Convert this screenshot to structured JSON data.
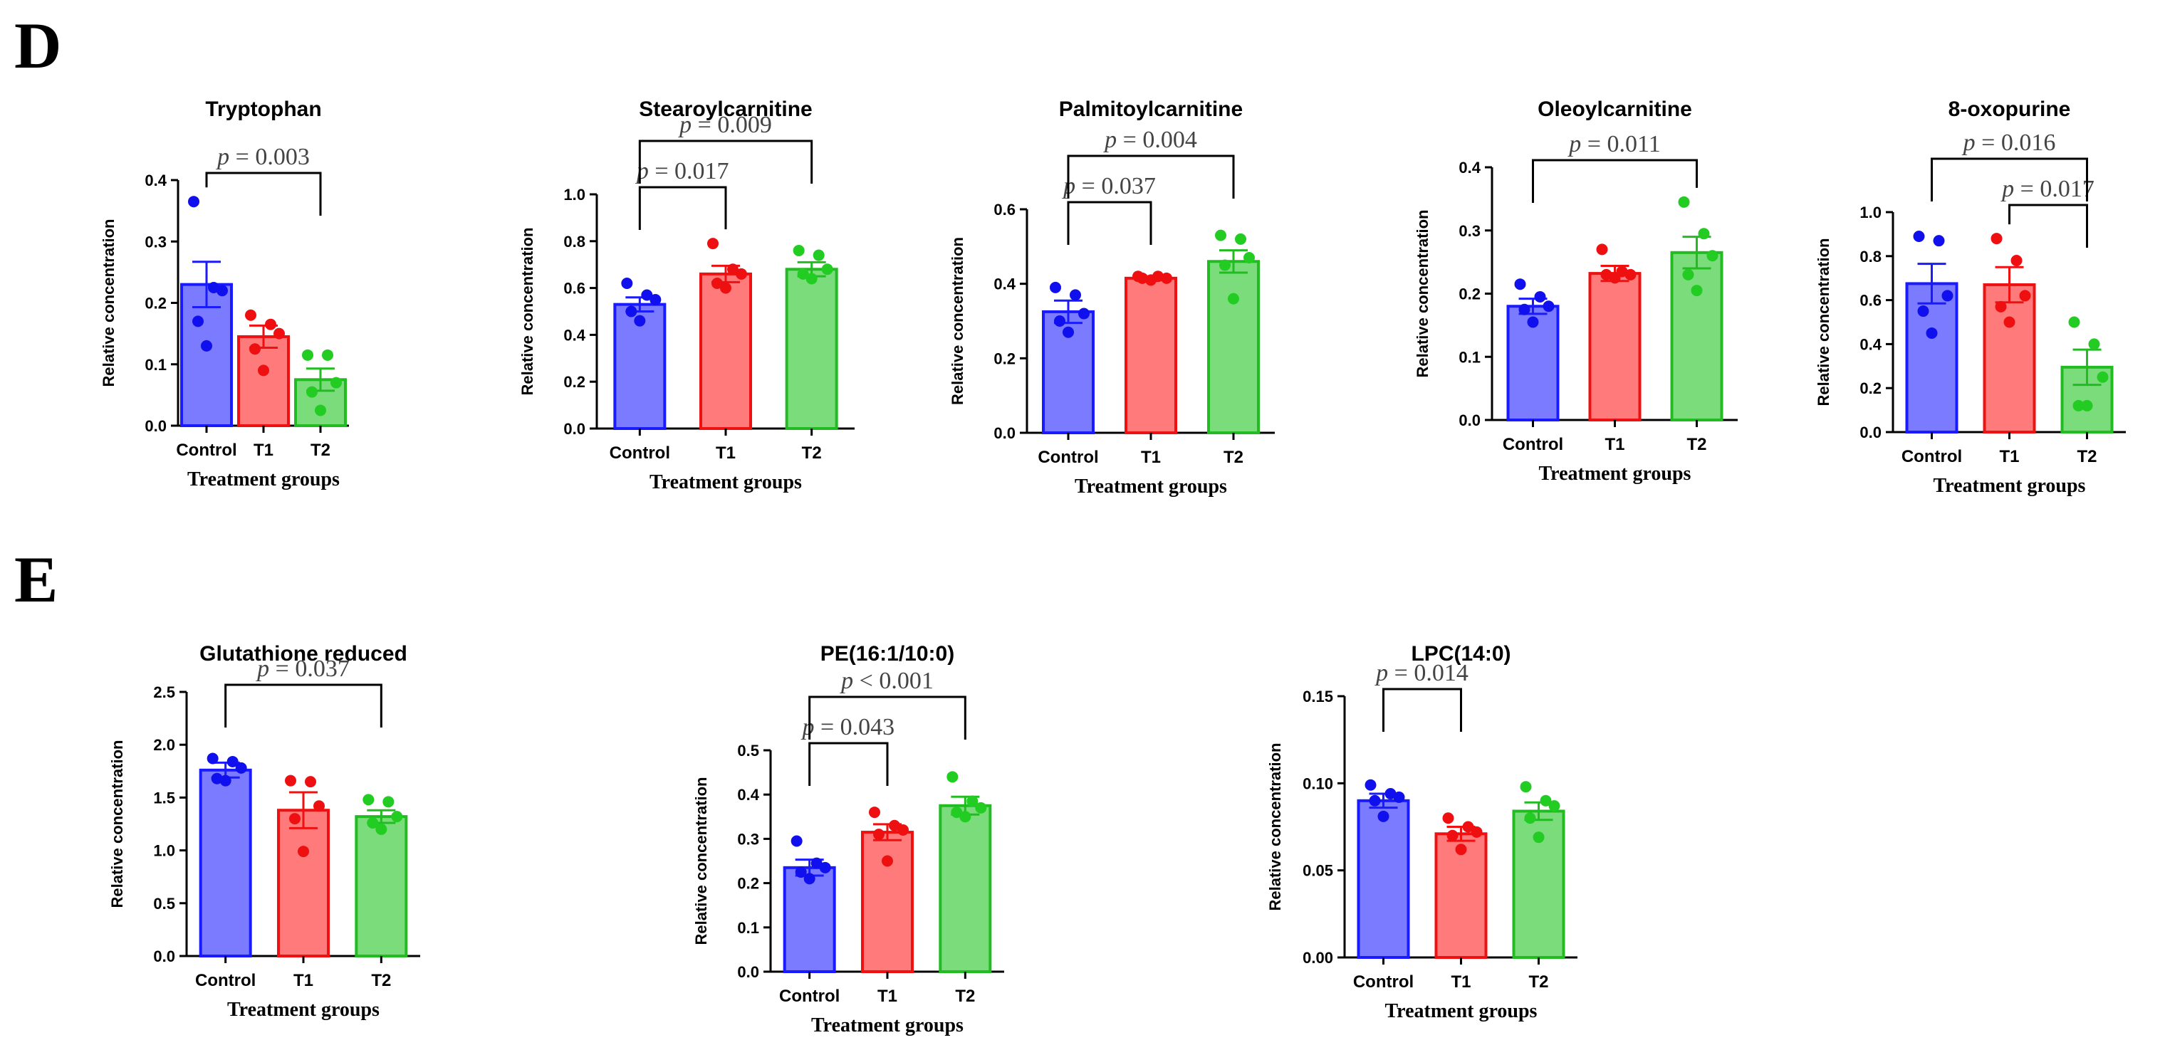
{
  "panels": [
    "D",
    "E"
  ],
  "colors": {
    "group_fill": [
      "#7b7bff",
      "#ff7b7b",
      "#7bdc7b"
    ],
    "group_edge": [
      "#1a1aff",
      "#ee1111",
      "#22bb22"
    ],
    "dot": [
      "#1010ee",
      "#ee1010",
      "#22cc22"
    ]
  },
  "chart_data": [
    {
      "type": "bar",
      "panel": "D",
      "title": "Tryptophan",
      "categories": [
        "Control",
        "T1",
        "T2"
      ],
      "values": [
        0.23,
        0.145,
        0.075
      ],
      "errors": [
        0.037,
        0.018,
        0.018
      ],
      "points": [
        [
          0.365,
          0.225,
          0.22,
          0.17,
          0.13
        ],
        [
          0.18,
          0.165,
          0.15,
          0.125,
          0.09
        ],
        [
          0.115,
          0.115,
          0.07,
          0.055,
          0.025
        ]
      ],
      "ylim": [
        0,
        0.4
      ],
      "yticks": [
        "0.0",
        "0.1",
        "0.2",
        "0.3",
        "0.4"
      ],
      "xlabel": "Treatment groups",
      "ylabel": "Relative concentration",
      "comparisons": [
        {
          "from": 0,
          "to": 2,
          "label": "p = 0.003"
        }
      ]
    },
    {
      "type": "bar",
      "panel": "D",
      "title": "Stearoylcarnitine",
      "categories": [
        "Control",
        "T1",
        "T2"
      ],
      "values": [
        0.53,
        0.66,
        0.68
      ],
      "errors": [
        0.03,
        0.035,
        0.03
      ],
      "points": [
        [
          0.62,
          0.57,
          0.55,
          0.5,
          0.46
        ],
        [
          0.79,
          0.68,
          0.66,
          0.62,
          0.6
        ],
        [
          0.76,
          0.74,
          0.68,
          0.66,
          0.64
        ]
      ],
      "ylim": [
        0,
        1.0
      ],
      "yticks": [
        "0.0",
        "0.2",
        "0.4",
        "0.6",
        "0.8",
        "1.0"
      ],
      "xlabel": "Treatment groups",
      "ylabel": "Relative concentration",
      "comparisons": [
        {
          "from": 0,
          "to": 1,
          "label": "p = 0.017"
        },
        {
          "from": 0,
          "to": 2,
          "label": "p = 0.009"
        }
      ]
    },
    {
      "type": "bar",
      "panel": "D",
      "title": "Palmitoylcarnitine",
      "categories": [
        "Control",
        "T1",
        "T2"
      ],
      "values": [
        0.325,
        0.415,
        0.46
      ],
      "errors": [
        0.03,
        0.005,
        0.03
      ],
      "points": [
        [
          0.39,
          0.37,
          0.32,
          0.3,
          0.27
        ],
        [
          0.42,
          0.42,
          0.415,
          0.415,
          0.41
        ],
        [
          0.53,
          0.52,
          0.47,
          0.45,
          0.36
        ]
      ],
      "ylim": [
        0,
        0.6
      ],
      "yticks": [
        "0.0",
        "0.2",
        "0.4",
        "0.6"
      ],
      "xlabel": "Treatment groups",
      "ylabel": "Relative concentration",
      "comparisons": [
        {
          "from": 0,
          "to": 1,
          "label": "p = 0.037"
        },
        {
          "from": 0,
          "to": 2,
          "label": "p = 0.004"
        }
      ]
    },
    {
      "type": "bar",
      "panel": "D",
      "title": "Oleoylcarnitine",
      "categories": [
        "Control",
        "T1",
        "T2"
      ],
      "values": [
        0.18,
        0.232,
        0.265
      ],
      "errors": [
        0.012,
        0.012,
        0.025
      ],
      "points": [
        [
          0.215,
          0.195,
          0.18,
          0.175,
          0.155
        ],
        [
          0.27,
          0.235,
          0.23,
          0.23,
          0.225
        ],
        [
          0.345,
          0.295,
          0.26,
          0.23,
          0.205
        ]
      ],
      "ylim": [
        0,
        0.4
      ],
      "yticks": [
        "0.0",
        "0.1",
        "0.2",
        "0.3",
        "0.4"
      ],
      "xlabel": "Treatment groups",
      "ylabel": "Relative concentration",
      "comparisons": [
        {
          "from": 0,
          "to": 2,
          "label": "p = 0.011"
        }
      ]
    },
    {
      "type": "bar",
      "panel": "D",
      "title": "8-oxopurine",
      "categories": [
        "Control",
        "T1",
        "T2"
      ],
      "values": [
        0.675,
        0.67,
        0.295
      ],
      "errors": [
        0.09,
        0.08,
        0.08
      ],
      "points": [
        [
          0.89,
          0.87,
          0.62,
          0.55,
          0.45
        ],
        [
          0.88,
          0.78,
          0.62,
          0.57,
          0.5
        ],
        [
          0.5,
          0.4,
          0.25,
          0.12,
          0.12
        ]
      ],
      "ylim": [
        0,
        1.0
      ],
      "yticks": [
        "0.0",
        "0.2",
        "0.4",
        "0.6",
        "0.8",
        "1.0"
      ],
      "xlabel": "Treatment groups",
      "ylabel": "Relative concentration",
      "comparisons": [
        {
          "from": 0,
          "to": 2,
          "label": "p = 0.016"
        },
        {
          "from": 1,
          "to": 2,
          "label": "p = 0.017"
        }
      ]
    },
    {
      "type": "bar",
      "panel": "E",
      "title": "Glutathione reduced",
      "categories": [
        "Control",
        "T1",
        "T2"
      ],
      "values": [
        1.76,
        1.38,
        1.32
      ],
      "errors": [
        0.07,
        0.17,
        0.06
      ],
      "points": [
        [
          1.87,
          1.84,
          1.78,
          1.68,
          1.66
        ],
        [
          1.66,
          1.65,
          1.42,
          1.3,
          0.99
        ],
        [
          1.48,
          1.46,
          1.32,
          1.26,
          1.2
        ]
      ],
      "ylim": [
        0,
        2.5
      ],
      "yticks": [
        "0.0",
        "0.5",
        "1.0",
        "1.5",
        "2.0",
        "2.5"
      ],
      "xlabel": "Treatment groups",
      "ylabel": "Relative concentration",
      "comparisons": [
        {
          "from": 0,
          "to": 2,
          "label": "p = 0.037"
        }
      ]
    },
    {
      "type": "bar",
      "panel": "E",
      "title": "PE(16:1/10:0)",
      "categories": [
        "Control",
        "T1",
        "T2"
      ],
      "values": [
        0.235,
        0.315,
        0.375
      ],
      "errors": [
        0.018,
        0.018,
        0.02
      ],
      "points": [
        [
          0.295,
          0.245,
          0.235,
          0.225,
          0.21
        ],
        [
          0.36,
          0.33,
          0.32,
          0.31,
          0.25
        ],
        [
          0.44,
          0.385,
          0.37,
          0.36,
          0.35
        ]
      ],
      "ylim": [
        0,
        0.5
      ],
      "yticks": [
        "0.0",
        "0.1",
        "0.2",
        "0.3",
        "0.4",
        "0.5"
      ],
      "xlabel": "Treatment groups",
      "ylabel": "Relative concentration",
      "comparisons": [
        {
          "from": 0,
          "to": 1,
          "label": "p = 0.043"
        },
        {
          "from": 0,
          "to": 2,
          "label": "p < 0.001"
        }
      ]
    },
    {
      "type": "bar",
      "panel": "E",
      "title": "LPC(14:0)",
      "categories": [
        "Control",
        "T1",
        "T2"
      ],
      "values": [
        0.09,
        0.071,
        0.084
      ],
      "errors": [
        0.004,
        0.004,
        0.005
      ],
      "points": [
        [
          0.099,
          0.094,
          0.092,
          0.09,
          0.081
        ],
        [
          0.08,
          0.075,
          0.072,
          0.07,
          0.062
        ],
        [
          0.098,
          0.09,
          0.087,
          0.08,
          0.069
        ]
      ],
      "ylim": [
        0,
        0.15
      ],
      "yticks": [
        "0.00",
        "0.05",
        "0.10",
        "0.15"
      ],
      "xlabel": "Treatment groups",
      "ylabel": "Relative concentration",
      "comparisons": [
        {
          "from": 0,
          "to": 1,
          "label": "p = 0.014"
        }
      ]
    }
  ]
}
